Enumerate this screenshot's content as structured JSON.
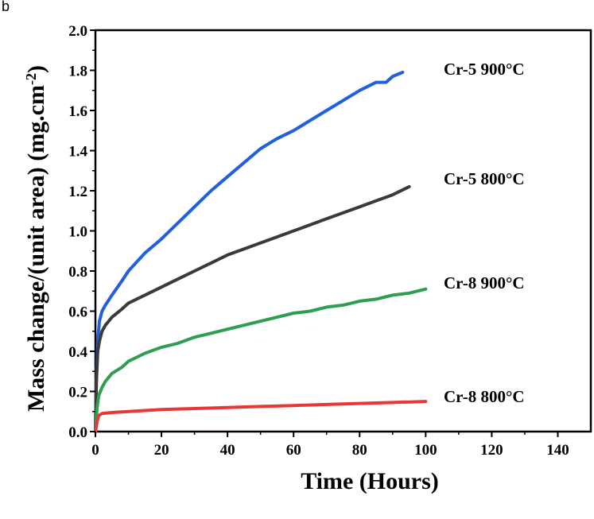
{
  "panel_letter": "b",
  "chart_data": {
    "type": "line",
    "xlabel": "Time (Hours)",
    "ylabel_main": "Mass change/(unit area) (mg.cm",
    "ylabel_sup": "-2",
    "ylabel_tail": ")",
    "xlim": [
      0,
      150
    ],
    "ylim": [
      0,
      2.0
    ],
    "xticks": [
      0,
      20,
      40,
      60,
      80,
      100,
      120,
      140
    ],
    "yticks": [
      0.0,
      0.2,
      0.4,
      0.6,
      0.8,
      1.0,
      1.2,
      1.4,
      1.6,
      1.8,
      2.0
    ],
    "grid": false,
    "series": [
      {
        "name": "Cr-5 900°C",
        "color": "#1f5fe0",
        "x": [
          0,
          0.3,
          0.7,
          1.2,
          2,
          3,
          5,
          8,
          10,
          15,
          20,
          25,
          30,
          35,
          40,
          45,
          50,
          55,
          60,
          65,
          70,
          75,
          80,
          85,
          88,
          90,
          93
        ],
        "y": [
          0,
          0.25,
          0.45,
          0.55,
          0.6,
          0.63,
          0.68,
          0.75,
          0.8,
          0.89,
          0.96,
          1.04,
          1.12,
          1.2,
          1.27,
          1.34,
          1.41,
          1.46,
          1.5,
          1.55,
          1.6,
          1.65,
          1.7,
          1.74,
          1.74,
          1.77,
          1.79
        ]
      },
      {
        "name": "Cr-5 800°C",
        "color": "#3a3a3a",
        "x": [
          0,
          0.3,
          0.7,
          1.2,
          2,
          3,
          5,
          8,
          10,
          15,
          20,
          25,
          30,
          35,
          40,
          45,
          50,
          55,
          60,
          65,
          70,
          75,
          80,
          85,
          90,
          95
        ],
        "y": [
          0,
          0.25,
          0.4,
          0.45,
          0.5,
          0.53,
          0.57,
          0.61,
          0.64,
          0.68,
          0.72,
          0.76,
          0.8,
          0.84,
          0.88,
          0.91,
          0.94,
          0.97,
          1.0,
          1.03,
          1.06,
          1.09,
          1.12,
          1.15,
          1.18,
          1.22
        ]
      },
      {
        "name": "Cr-8 900°C",
        "color": "#2e9e4f",
        "x": [
          0,
          0.5,
          1,
          2,
          3,
          5,
          8,
          10,
          15,
          20,
          25,
          30,
          35,
          40,
          45,
          50,
          55,
          60,
          65,
          70,
          75,
          80,
          85,
          90,
          95,
          100
        ],
        "y": [
          0,
          0.12,
          0.18,
          0.22,
          0.25,
          0.29,
          0.32,
          0.35,
          0.39,
          0.42,
          0.44,
          0.47,
          0.49,
          0.51,
          0.53,
          0.55,
          0.57,
          0.59,
          0.6,
          0.62,
          0.63,
          0.65,
          0.66,
          0.68,
          0.69,
          0.71
        ]
      },
      {
        "name": "Cr-8 800°C",
        "color": "#e53935",
        "x": [
          0,
          0.5,
          1,
          2,
          5,
          10,
          20,
          30,
          40,
          50,
          60,
          70,
          80,
          90,
          100
        ],
        "y": [
          0,
          0.05,
          0.08,
          0.09,
          0.095,
          0.1,
          0.11,
          0.115,
          0.12,
          0.125,
          0.13,
          0.135,
          0.14,
          0.145,
          0.15
        ]
      }
    ]
  }
}
